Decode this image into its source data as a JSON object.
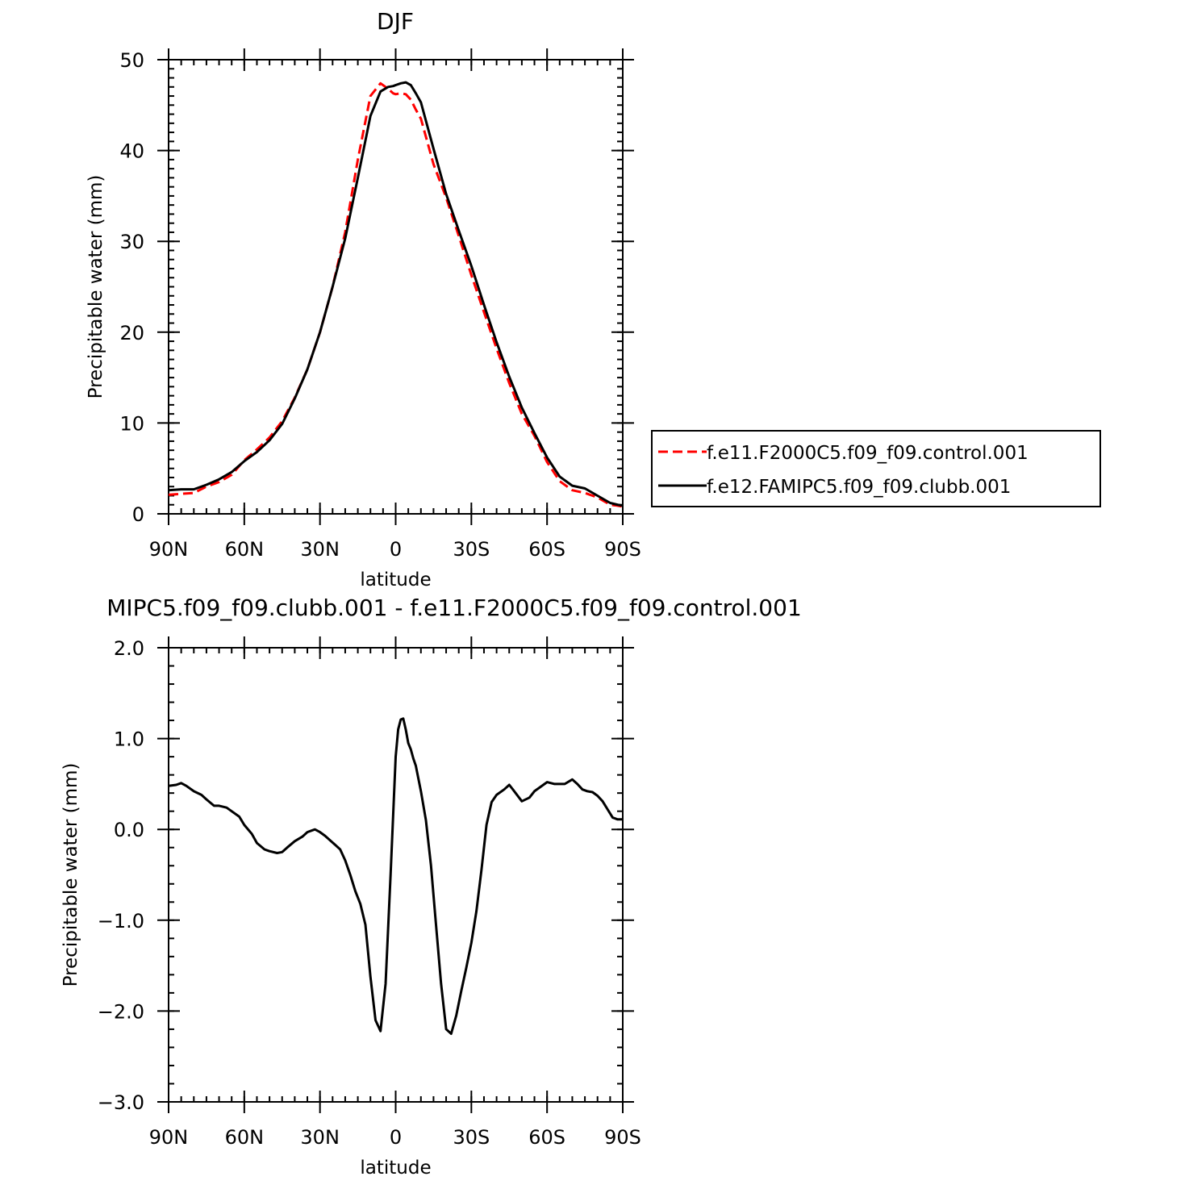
{
  "chart_data": [
    {
      "type": "line",
      "title": "DJF",
      "xlabel": "latitude",
      "ylabel": "Precipitable water (mm)",
      "xlim": [
        90,
        -90
      ],
      "ylim": [
        0,
        50
      ],
      "x_ticks": [
        {
          "value": 90,
          "label": "90N"
        },
        {
          "value": 60,
          "label": "60N"
        },
        {
          "value": 30,
          "label": "30N"
        },
        {
          "value": 0,
          "label": "0"
        },
        {
          "value": -30,
          "label": "30S"
        },
        {
          "value": -60,
          "label": "60S"
        },
        {
          "value": -90,
          "label": "90S"
        }
      ],
      "y_ticks": [
        {
          "value": 0,
          "label": "0"
        },
        {
          "value": 10,
          "label": "10"
        },
        {
          "value": 20,
          "label": "20"
        },
        {
          "value": 30,
          "label": "30"
        },
        {
          "value": 40,
          "label": "40"
        },
        {
          "value": 50,
          "label": "50"
        }
      ],
      "legend": "right",
      "series": [
        {
          "name": "f.e11.F2000C5.f09_f09.control.001",
          "color": "#ff0000",
          "dashed": true,
          "x": [
            90,
            85,
            80,
            75,
            70,
            65,
            60,
            55,
            50,
            45,
            40,
            35,
            30,
            25,
            20,
            15,
            10,
            6,
            3,
            1,
            0,
            -2,
            -4,
            -6,
            -8,
            -10,
            -15,
            -20,
            -25,
            -30,
            -35,
            -40,
            -45,
            -50,
            -55,
            -60,
            -65,
            -70,
            -75,
            -80,
            -85,
            -88,
            -90
          ],
          "y": [
            2.1,
            2.2,
            2.3,
            3.0,
            3.5,
            4.3,
            5.9,
            7.1,
            8.4,
            10.2,
            12.8,
            15.9,
            20.0,
            25.0,
            31.0,
            39.0,
            46.0,
            47.4,
            46.8,
            46.3,
            46.2,
            46.3,
            46.2,
            45.6,
            44.5,
            43.5,
            38.5,
            34.8,
            30.6,
            26.3,
            22.2,
            18.2,
            14.4,
            11.0,
            8.6,
            5.7,
            3.6,
            2.6,
            2.3,
            1.8,
            1.0,
            0.9,
            0.8
          ]
        },
        {
          "name": "f.e12.FAMIPC5.f09_f09.clubb.001",
          "color": "#000000",
          "dashed": false,
          "x": [
            90,
            85,
            80,
            75,
            70,
            65,
            60,
            55,
            50,
            45,
            40,
            35,
            30,
            25,
            20,
            15,
            10,
            6,
            3,
            1,
            0,
            -2,
            -4,
            -6,
            -8,
            -10,
            -15,
            -20,
            -25,
            -30,
            -35,
            -40,
            -45,
            -50,
            -55,
            -60,
            -65,
            -70,
            -75,
            -80,
            -85,
            -88,
            -90
          ],
          "y": [
            2.6,
            2.7,
            2.7,
            3.2,
            3.8,
            4.6,
            5.8,
            6.8,
            8.1,
            9.9,
            12.7,
            15.9,
            20.0,
            25.0,
            30.3,
            37.0,
            43.8,
            46.5,
            47.0,
            47.1,
            47.2,
            47.4,
            47.5,
            47.2,
            46.3,
            45.3,
            40.2,
            35.2,
            31.2,
            27.3,
            23.0,
            18.9,
            15.1,
            11.7,
            8.9,
            6.2,
            4.1,
            3.1,
            2.8,
            2.0,
            1.2,
            1.0,
            0.9
          ]
        }
      ]
    },
    {
      "type": "line",
      "title": "MIPC5.f09_f09.clubb.001 - f.e11.F2000C5.f09_f09.control.001",
      "xlabel": "latitude",
      "ylabel": "Precipitable water (mm)",
      "xlim": [
        90,
        -90
      ],
      "ylim": [
        -3,
        2
      ],
      "x_ticks": [
        {
          "value": 90,
          "label": "90N"
        },
        {
          "value": 60,
          "label": "60N"
        },
        {
          "value": 30,
          "label": "30N"
        },
        {
          "value": 0,
          "label": "0"
        },
        {
          "value": -30,
          "label": "30S"
        },
        {
          "value": -60,
          "label": "60S"
        },
        {
          "value": -90,
          "label": "90S"
        }
      ],
      "y_ticks": [
        {
          "value": -3,
          "label": "−3.0"
        },
        {
          "value": -2,
          "label": "−2.0"
        },
        {
          "value": -1,
          "label": "−1.0"
        },
        {
          "value": 0,
          "label": "0.0"
        },
        {
          "value": 1,
          "label": "1.0"
        },
        {
          "value": 2,
          "label": "2.0"
        }
      ],
      "series": [
        {
          "color": "#000000",
          "dashed": false,
          "x": [
            90,
            87,
            85,
            83,
            80,
            77,
            75,
            72,
            70,
            67,
            65,
            62,
            60,
            57,
            55,
            52,
            50,
            47,
            45,
            43,
            40,
            37,
            35,
            32,
            30,
            28,
            26,
            24,
            22,
            20,
            18,
            16,
            14,
            12,
            10,
            8,
            6,
            4,
            2,
            0,
            -1,
            -2,
            -3,
            -4,
            -5,
            -6,
            -7,
            -8,
            -10,
            -12,
            -14,
            -16,
            -18,
            -20,
            -22,
            -24,
            -26,
            -28,
            -30,
            -32,
            -34,
            -36,
            -38,
            -40,
            -43,
            -45,
            -47,
            -50,
            -53,
            -55,
            -57,
            -60,
            -63,
            -65,
            -67,
            -70,
            -72,
            -74,
            -76,
            -78,
            -80,
            -82,
            -84,
            -86,
            -88,
            -90
          ],
          "y": [
            0.48,
            0.49,
            0.51,
            0.48,
            0.42,
            0.38,
            0.33,
            0.26,
            0.26,
            0.24,
            0.2,
            0.14,
            0.05,
            -0.05,
            -0.15,
            -0.22,
            -0.24,
            -0.26,
            -0.25,
            -0.2,
            -0.13,
            -0.08,
            -0.03,
            0.0,
            -0.03,
            -0.07,
            -0.12,
            -0.17,
            -0.22,
            -0.34,
            -0.5,
            -0.68,
            -0.82,
            -1.05,
            -1.62,
            -2.1,
            -2.22,
            -1.7,
            -0.5,
            0.8,
            1.1,
            1.21,
            1.22,
            1.1,
            0.95,
            0.88,
            0.78,
            0.7,
            0.42,
            0.1,
            -0.4,
            -1.05,
            -1.7,
            -2.2,
            -2.25,
            -2.05,
            -1.78,
            -1.52,
            -1.25,
            -0.9,
            -0.45,
            0.05,
            0.3,
            0.38,
            0.44,
            0.49,
            0.42,
            0.31,
            0.35,
            0.42,
            0.46,
            0.52,
            0.5,
            0.5,
            0.5,
            0.55,
            0.5,
            0.44,
            0.42,
            0.41,
            0.37,
            0.31,
            0.22,
            0.13,
            0.11,
            0.11
          ]
        }
      ]
    }
  ]
}
